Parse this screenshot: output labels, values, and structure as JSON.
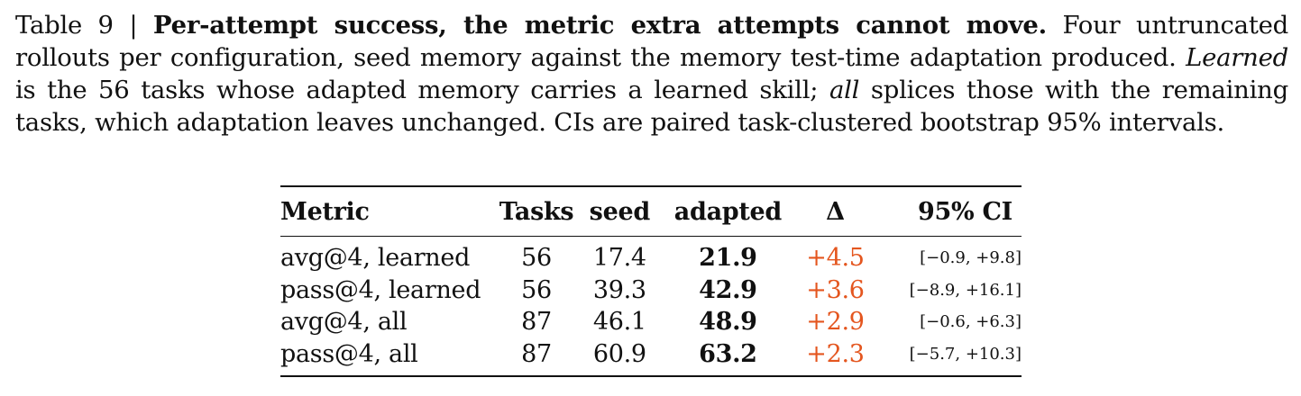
{
  "caption": {
    "label": "Table 9 | ",
    "title": "Per-attempt success, the metric extra attempts cannot move.",
    "text_1": " Four untruncated rollouts per configuration, seed memory against the memory test-time adaptation produced. ",
    "italic_1": "Learned",
    "text_2": " is the 56 tasks whose adapted memory carries a learned skill; ",
    "italic_2": "all",
    "text_3": " splices those with the remaining tasks, which adaptation leaves unchanged. CIs are paired task-clustered bootstrap 95% intervals."
  },
  "table": {
    "headers": {
      "metric": "Metric",
      "tasks": "Tasks",
      "seed": "seed",
      "adapted": "adapted",
      "delta": "Δ",
      "ci": "95% CI"
    },
    "rows": [
      {
        "metric": "avg@4, learned",
        "tasks": "56",
        "seed": "17.4",
        "adapted": "21.9",
        "delta": "+4.5",
        "ci": "[−0.9, +9.8]"
      },
      {
        "metric": "pass@4, learned",
        "tasks": "56",
        "seed": "39.3",
        "adapted": "42.9",
        "delta": "+3.6",
        "ci": "[−8.9, +16.1]"
      },
      {
        "metric": "avg@4, all",
        "tasks": "87",
        "seed": "46.1",
        "adapted": "48.9",
        "delta": "+2.9",
        "ci": "[−0.6, +6.3]"
      },
      {
        "metric": "pass@4, all",
        "tasks": "87",
        "seed": "60.9",
        "adapted": "63.2",
        "delta": "+2.3",
        "ci": "[−5.7, +10.3]"
      }
    ]
  },
  "colors": {
    "delta": "#e4561f"
  }
}
